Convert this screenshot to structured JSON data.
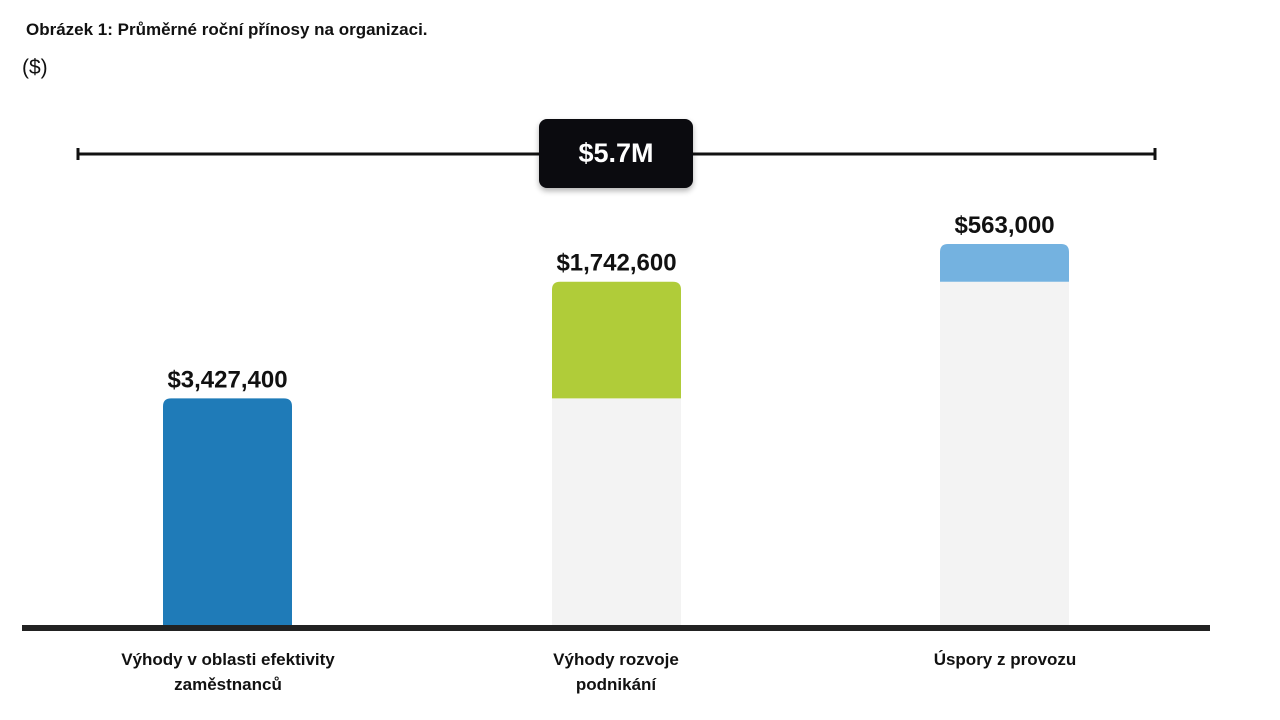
{
  "chart_data": {
    "type": "bar",
    "subtype": "waterfall",
    "title": "Obrázek 1: Průměrné roční přínosy na organizaci.",
    "ylabel": "($)",
    "categories": [
      "Výhody v oblasti efektivity zaměstnanců",
      "Výhody rozvoje podnikání",
      "Úspory z provozu"
    ],
    "values": [
      3427400,
      1742600,
      563000
    ],
    "value_labels": [
      "$3,427,400",
      "$1,742,600",
      "$563,000"
    ],
    "total_label": "$5.7M",
    "total": 5733000,
    "colors": [
      "#1f7bb8",
      "#b0cc39",
      "#74b2e0"
    ],
    "base_color": "#f3f3f3",
    "ylim": [
      0,
      5733000
    ],
    "grid": false
  }
}
